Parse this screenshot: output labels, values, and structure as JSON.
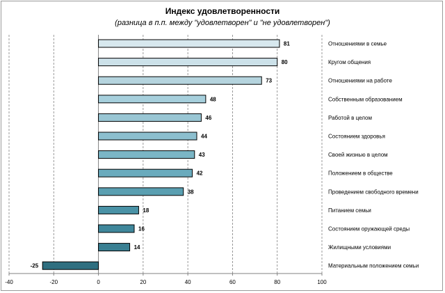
{
  "chart_data": {
    "type": "bar",
    "orientation": "horizontal",
    "title": "Индекс удовлетворенности",
    "subtitle": "(разница в п.п. между \"удовлетворен\" и \"не удовлетворен\")",
    "xlim": [
      -40,
      100
    ],
    "x_ticks": [
      "-40",
      "-20",
      "0",
      "20",
      "40",
      "60",
      "80",
      "100"
    ],
    "grid": "vertical dashed",
    "legend": "none",
    "categories": [
      "Отношениями в семье",
      "Кругом общения",
      "Отношениями на работе",
      "Собственным образованием",
      "Работой в целом",
      "Состоянием здоровья",
      "Своей жизнью в целом",
      "Положением в обществе",
      "Проведением свободного времени",
      "Питанием семьи",
      "Состоянием оружающей среды",
      "Жилищными условиями",
      "Материальным положением семьи"
    ],
    "values": [
      81,
      80,
      73,
      48,
      46,
      44,
      43,
      42,
      38,
      18,
      16,
      14,
      -25
    ],
    "data_labels": [
      "81",
      "80",
      "73",
      "48",
      "46",
      "44",
      "43",
      "42",
      "38",
      "18",
      "16",
      "14",
      "-25"
    ],
    "colors": [
      "#d7e8ee",
      "#cce1e9",
      "#b5d4de",
      "#a6cfdc",
      "#99c6d4",
      "#8cbfcf",
      "#7bb6c6",
      "#6aabbd",
      "#5a9fb1",
      "#4a92a6",
      "#3f879b",
      "#397f92",
      "#2f6f80"
    ]
  }
}
